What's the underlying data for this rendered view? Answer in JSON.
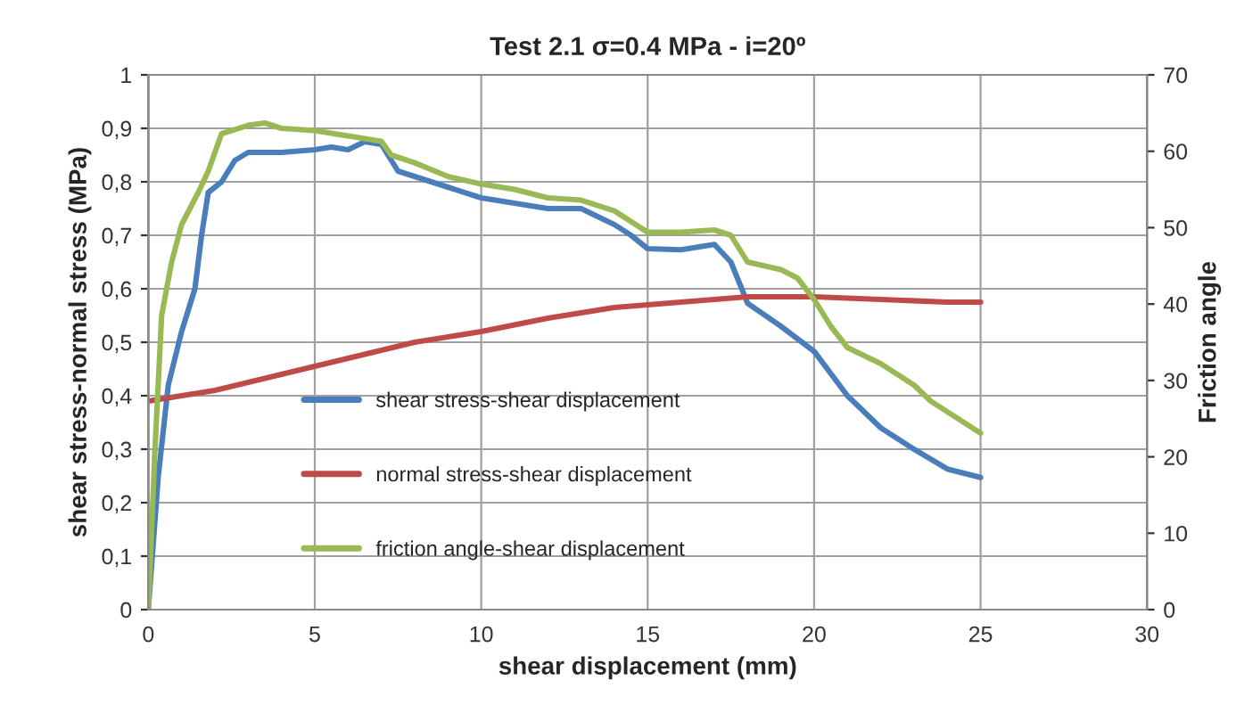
{
  "chart_data": {
    "type": "line",
    "title": "Test 2.1 σ=0.4 MPa - i=20º",
    "xlabel": "shear displacement (mm)",
    "ylabel": "shear stress-normal stress (MPa)",
    "y2label": "Friction angle",
    "xlim": [
      0,
      30
    ],
    "xticks": [
      0,
      5,
      10,
      15,
      20,
      25,
      30
    ],
    "ylim": [
      0,
      1
    ],
    "yticks": [
      0,
      {
        "value": 0.1,
        "label": "0,1"
      },
      {
        "value": 0.2,
        "label": "0,2"
      },
      {
        "value": 0.3,
        "label": "0,3"
      },
      {
        "value": 0.4,
        "label": "0,4"
      },
      {
        "value": 0.5,
        "label": "0,5"
      },
      {
        "value": 0.6,
        "label": "0,6"
      },
      {
        "value": 0.7,
        "label": "0,7"
      },
      {
        "value": 0.8,
        "label": "0,8"
      },
      {
        "value": 0.9,
        "label": "0,9"
      },
      1
    ],
    "y2lim": [
      0,
      70
    ],
    "y2ticks": [
      0,
      10,
      20,
      30,
      40,
      50,
      60,
      70
    ],
    "grid": true,
    "legend": "center",
    "marker": "none",
    "line_style": "solid",
    "series": [
      {
        "name": "shear stress-shear displacement",
        "color": "#4a7ebb",
        "x": [
          0,
          0.3,
          0.6,
          1,
          1.4,
          1.6,
          1.8,
          2.2,
          2.6,
          3,
          4,
          5,
          5.5,
          6,
          6.5,
          7,
          7.2,
          7.5,
          8,
          9,
          10,
          11,
          12,
          13,
          14,
          14.5,
          15,
          16,
          17,
          17.5,
          18,
          19,
          20,
          21,
          22,
          23,
          24,
          25
        ],
        "values": [
          0,
          0.25,
          0.42,
          0.52,
          0.6,
          0.7,
          0.78,
          0.8,
          0.84,
          0.855,
          0.855,
          0.86,
          0.865,
          0.86,
          0.875,
          0.87,
          0.85,
          0.82,
          0.81,
          0.79,
          0.77,
          0.76,
          0.75,
          0.75,
          0.72,
          0.7,
          0.675,
          0.673,
          0.683,
          0.65,
          0.573,
          0.53,
          0.483,
          0.4,
          0.34,
          0.3,
          0.263,
          0.247
        ]
      },
      {
        "name": "normal stress-shear displacement",
        "color": "#be4b48",
        "x": [
          0,
          2,
          4,
          6,
          8,
          10,
          12,
          14,
          16,
          18,
          20,
          22,
          24,
          25
        ],
        "values": [
          0.39,
          0.41,
          0.44,
          0.47,
          0.5,
          0.52,
          0.545,
          0.565,
          0.575,
          0.585,
          0.585,
          0.58,
          0.575,
          0.575
        ]
      },
      {
        "name": "friction angle-shear displacement",
        "color": "#98b954",
        "axis": "y2",
        "x": [
          0,
          0.2,
          0.4,
          0.7,
          1,
          1.5,
          1.8,
          2.2,
          2.5,
          3,
          3.5,
          4,
          5,
          6,
          7,
          7.3,
          8,
          9,
          10,
          11,
          12,
          13,
          14,
          15,
          16,
          17,
          17.5,
          18,
          19,
          19.5,
          20,
          20.5,
          21,
          22,
          23,
          23.5,
          24,
          25
        ],
        "values": [
          0,
          21,
          38.5,
          45.5,
          50.4,
          54.6,
          57.4,
          62.3,
          62.7,
          63.4,
          63.7,
          63,
          62.7,
          62,
          61.3,
          59.5,
          58.5,
          56.7,
          55.7,
          55,
          53.9,
          53.6,
          52.2,
          49.4,
          49.4,
          49.7,
          49,
          45.5,
          44.5,
          43.4,
          40.6,
          37.1,
          34.3,
          32.2,
          29.4,
          27.3,
          25.9,
          23.1
        ]
      }
    ]
  }
}
